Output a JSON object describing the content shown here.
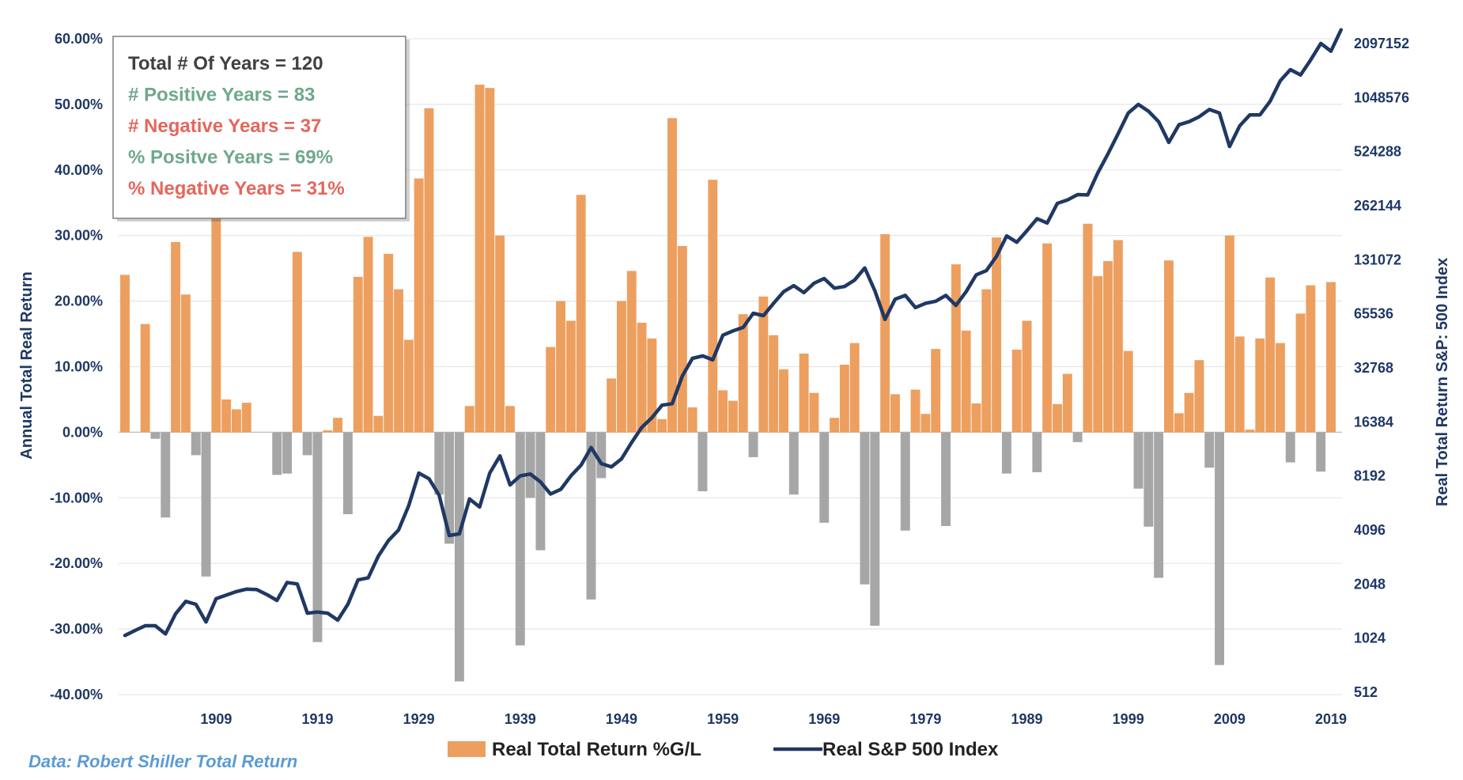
{
  "chart_data": {
    "type": "bar+line",
    "title": "",
    "colors": {
      "positive_bar": "#ED9F5F",
      "negative_bar": "#A6A6A6",
      "line": "#1F3864",
      "axis_text": "#1F3864",
      "grid": "#E6E6E6",
      "stat_total": "#404040",
      "stat_positive": "#6FA88C",
      "stat_negative": "#E4665C"
    },
    "y_left": {
      "label": "Annual Total Real Return",
      "min": -40,
      "max": 60,
      "step": 10,
      "ticks": [
        "60.00%",
        "50.00%",
        "40.00%",
        "30.00%",
        "20.00%",
        "10.00%",
        "0.00%",
        "-10.00%",
        "-20.00%",
        "-30.00%",
        "-40.00%"
      ]
    },
    "y_right": {
      "label": "Real Total Return S&P: 500 Index",
      "scale": "log2",
      "ticks": [
        "2097152",
        "1048576",
        "524288",
        "262144",
        "131072",
        "65536",
        "32768",
        "16384",
        "8192",
        "4096",
        "2048",
        "1024",
        "512"
      ]
    },
    "x": {
      "start_year": 1900,
      "end_year": 2019,
      "tick_labels": [
        "1909",
        "1919",
        "1929",
        "1939",
        "1949",
        "1959",
        "1969",
        "1979",
        "1989",
        "1999",
        "2009",
        "2019"
      ]
    },
    "series": [
      {
        "name": "Real Total Return %G/L",
        "type": "bar",
        "values": [
          24,
          0,
          16.5,
          -1,
          -13,
          29,
          21,
          -3.5,
          -22,
          36,
          5,
          3.5,
          4.5,
          0,
          0,
          -6.5,
          -6.3,
          27.5,
          -3.5,
          -32,
          0.3,
          2.2,
          -12.5,
          23.7,
          29.8,
          2.5,
          27.2,
          21.8,
          14.1,
          38.7,
          49.4,
          -9.5,
          -17,
          -38,
          4,
          53,
          52.5,
          30,
          4,
          -32.5,
          -10,
          -18,
          13,
          20,
          17,
          36.2,
          -25.5,
          -7,
          8.2,
          20,
          24.6,
          16.7,
          14.3,
          2,
          47.9,
          28.4,
          3.8,
          -9,
          38.5,
          6.4,
          4.8,
          18,
          -3.8,
          20.7,
          14.8,
          9.6,
          -9.5,
          12,
          6,
          -13.8,
          2.2,
          10.3,
          13.6,
          -23.2,
          -29.5,
          30.2,
          5.8,
          -15,
          6.5,
          2.8,
          12.7,
          -14.3,
          25.6,
          15.5,
          4.4,
          21.8,
          29.7,
          -6.3,
          12.6,
          17,
          -6.1,
          28.8,
          4.3,
          8.9,
          -1.5,
          31.8,
          23.8,
          26.1,
          29.3,
          12.4,
          -8.6,
          -14.4,
          -22.2,
          26.2,
          2.9,
          6,
          11,
          -5.4,
          -35.5,
          30,
          14.6,
          0.4,
          14.3,
          23.6,
          13.6,
          -4.6,
          18.1,
          22.4,
          -6,
          22.9
        ]
      },
      {
        "name": "Real S&P 500 Index",
        "type": "line",
        "axis": "right",
        "values": [
          1060,
          1130,
          1200,
          1200,
          1080,
          1400,
          1640,
          1580,
          1260,
          1700,
          1780,
          1860,
          1920,
          1910,
          1790,
          1660,
          2090,
          2050,
          1410,
          1430,
          1410,
          1290,
          1580,
          2160,
          2220,
          2930,
          3580,
          4100,
          5600,
          8500,
          7900,
          6400,
          3820,
          3900,
          6100,
          5500,
          8500,
          10600,
          7300,
          8200,
          8400,
          7600,
          6500,
          6900,
          8200,
          9400,
          11800,
          9600,
          9200,
          10200,
          12600,
          15300,
          17300,
          20300,
          20700,
          29500,
          37000,
          38200,
          36300,
          49800,
          52600,
          55000,
          66000,
          64000,
          75000,
          87000,
          94000,
          86000,
          97000,
          103000,
          91000,
          93000,
          101000,
          118000,
          88000,
          61000,
          79000,
          83000,
          71000,
          75000,
          77000,
          83000,
          73000,
          87000,
          108000,
          114000,
          137000,
          178000,
          164000,
          190000,
          222000,
          210000,
          270000,
          282000,
          302000,
          301000,
          400000,
          510000,
          660000,
          860000,
          960000,
          880000,
          770000,
          590000,
          740000,
          770000,
          820000,
          900000,
          860000,
          560000,
          730000,
          840000,
          840000,
          1000000,
          1300000,
          1500000,
          1400000,
          1700000,
          2100000,
          1900000,
          2500000
        ]
      }
    ],
    "legend": {
      "position": "bottom",
      "items": [
        {
          "label": "Real Total Return %G/L",
          "kind": "bar"
        },
        {
          "label": "Real S&P 500 Index",
          "kind": "line"
        }
      ]
    },
    "annotation_box": {
      "lines": [
        {
          "text": "Total # Of Years =  120",
          "tone": "total"
        },
        {
          "text": "# Positive Years =   83",
          "tone": "positive"
        },
        {
          "text": "# Negative Years = 37",
          "tone": "negative"
        },
        {
          "text": "% Positve Years =    69%",
          "tone": "positive"
        },
        {
          "text": "% Negative Years = 31%",
          "tone": "negative"
        }
      ]
    },
    "source": "Data: Robert Shiller Total Return"
  }
}
